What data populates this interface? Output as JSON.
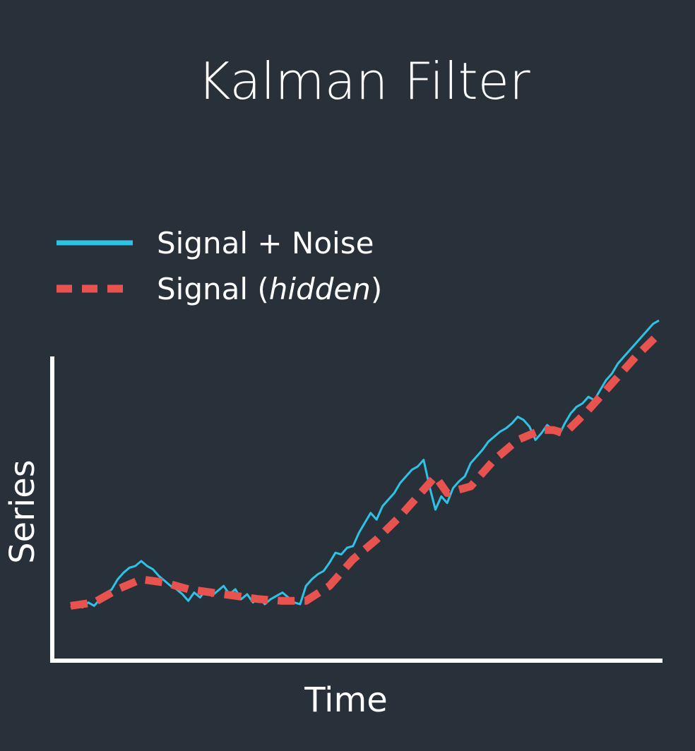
{
  "colors": {
    "background": "#283039",
    "noisy": "#2ec3e6",
    "hidden": "#e8524f",
    "axis": "#ffffff"
  },
  "chart_data": {
    "type": "line",
    "title": "Kalman Filter",
    "xlabel": "Time",
    "ylabel": "Series",
    "grid": false,
    "legend_position": "top-left",
    "xlim": [
      0,
      100
    ],
    "ylim": [
      0,
      100
    ],
    "series": [
      {
        "name": "Signal + Noise",
        "style": "solid",
        "color": "#2ec3e6",
        "x": [
          0,
          1,
          2,
          3,
          4,
          5,
          6,
          7,
          8,
          9,
          10,
          11,
          12,
          13,
          14,
          15,
          16,
          17,
          18,
          19,
          20,
          21,
          22,
          23,
          24,
          25,
          26,
          27,
          28,
          29,
          30,
          31,
          32,
          33,
          34,
          35,
          36,
          37,
          38,
          39,
          40,
          41,
          42,
          43,
          44,
          45,
          46,
          47,
          48,
          49,
          50,
          51,
          52,
          53,
          54,
          55,
          56,
          57,
          58,
          59,
          60,
          61,
          62,
          63,
          64,
          65,
          66,
          67,
          68,
          69,
          70,
          71,
          72,
          73,
          74,
          75,
          76,
          77,
          78,
          79,
          80,
          81,
          82,
          83,
          84,
          85,
          86,
          87,
          88,
          89,
          90,
          91,
          92,
          93,
          94,
          95,
          96,
          97,
          98,
          99,
          100
        ],
        "y": [
          10.5,
          11.5,
          10.5,
          12,
          11,
          13,
          14.5,
          16,
          19,
          21,
          22.5,
          23,
          24.5,
          23,
          22,
          20,
          18.5,
          17,
          16,
          14.5,
          12.5,
          15,
          13.5,
          16,
          14,
          15.5,
          17,
          14.5,
          16,
          13,
          14.5,
          12,
          13.5,
          11.5,
          13,
          14,
          15,
          13.5,
          12,
          11.5,
          17,
          19,
          20.5,
          21.5,
          24,
          27,
          26.5,
          28.5,
          29,
          33,
          36,
          39,
          37,
          41,
          43,
          45,
          48,
          50,
          52,
          53,
          55,
          47,
          40,
          44,
          42,
          46.5,
          48.5,
          50,
          54,
          56,
          58,
          60.5,
          62,
          63.5,
          64.5,
          66,
          68,
          67,
          65,
          61,
          63,
          65.5,
          64,
          62.5,
          66,
          69,
          71,
          72,
          74,
          73,
          76,
          79,
          81,
          84,
          86,
          88,
          90,
          92,
          94,
          96,
          97
        ]
      },
      {
        "name": "Signal (hidden)",
        "name_prefix": "Signal (",
        "name_emphasis": "hidden",
        "name_suffix": ")",
        "style": "dashed",
        "color": "#e8524f",
        "x": [
          0,
          4,
          8,
          12,
          16,
          20,
          24,
          28,
          32,
          36,
          40,
          44,
          48,
          52,
          56,
          60,
          62,
          64,
          68,
          72,
          76,
          80,
          82,
          84,
          88,
          92,
          96,
          100
        ],
        "y": [
          11,
          12,
          16,
          19,
          18,
          16,
          15,
          14,
          13,
          12.5,
          12.5,
          17,
          25,
          31,
          38,
          46,
          50,
          45,
          47,
          55,
          61,
          64,
          64,
          63,
          70,
          78,
          86,
          93
        ]
      }
    ]
  }
}
